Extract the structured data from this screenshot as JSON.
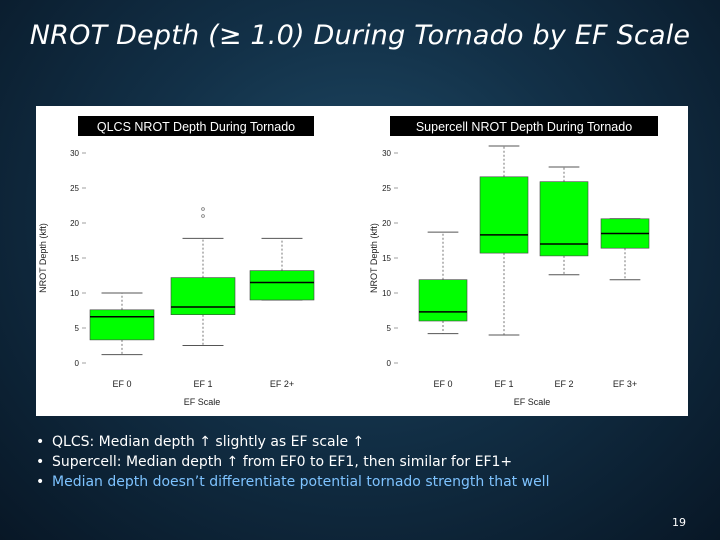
{
  "slide": {
    "title": "NROT Depth (≥ 1.0) During Tornado by EF Scale",
    "page_number": "19",
    "bullets": [
      "QLCS:  Median depth ↑ slightly as EF scale ↑",
      "Supercell:  Median depth ↑ from EF0 to EF1, then similar for EF1+",
      "Median depth doesn’t differentiate potential tornado strength that well"
    ]
  },
  "colors": {
    "box_fill": "#00ff00",
    "header_bg": "#000000",
    "accent_text": "#7ec3ff"
  },
  "chart_data": [
    {
      "type": "box",
      "title": "QLCS NROT Depth During Tornado",
      "xlabel": "EF Scale",
      "ylabel": "NROT Depth (kft)",
      "ylim": [
        0,
        30
      ],
      "yticks": [
        0,
        5,
        10,
        15,
        20,
        25,
        30
      ],
      "categories": [
        "EF 0",
        "EF 1",
        "EF 2+"
      ],
      "boxes": [
        {
          "whisker_low": 1.2,
          "q1": 3.3,
          "median": 6.6,
          "q3": 7.6,
          "whisker_high": 10.0,
          "outliers": []
        },
        {
          "whisker_low": 2.5,
          "q1": 6.9,
          "median": 8.0,
          "q3": 12.2,
          "whisker_high": 17.8,
          "outliers": [
            21.0,
            22.0
          ]
        },
        {
          "whisker_low": 9.0,
          "q1": 9.0,
          "median": 11.5,
          "q3": 13.2,
          "whisker_high": 17.8,
          "outliers": []
        }
      ]
    },
    {
      "type": "box",
      "title": "Supercell NROT Depth During Tornado",
      "xlabel": "EF Scale",
      "ylabel": "NROT Depth (kft)",
      "ylim": [
        0,
        30
      ],
      "yticks": [
        0,
        5,
        10,
        15,
        20,
        25,
        30
      ],
      "categories": [
        "EF 0",
        "EF 1",
        "EF 2",
        "EF 3+"
      ],
      "boxes": [
        {
          "whisker_low": 4.2,
          "q1": 6.0,
          "median": 7.3,
          "q3": 11.9,
          "whisker_high": 18.7,
          "outliers": []
        },
        {
          "whisker_low": 4.0,
          "q1": 15.7,
          "median": 18.3,
          "q3": 26.6,
          "whisker_high": 31.0,
          "outliers": []
        },
        {
          "whisker_low": 12.6,
          "q1": 15.3,
          "median": 17.0,
          "q3": 25.9,
          "whisker_high": 28.0,
          "outliers": []
        },
        {
          "whisker_low": 11.9,
          "q1": 16.4,
          "median": 18.5,
          "q3": 20.6,
          "whisker_high": 20.6,
          "outliers": []
        }
      ]
    }
  ]
}
